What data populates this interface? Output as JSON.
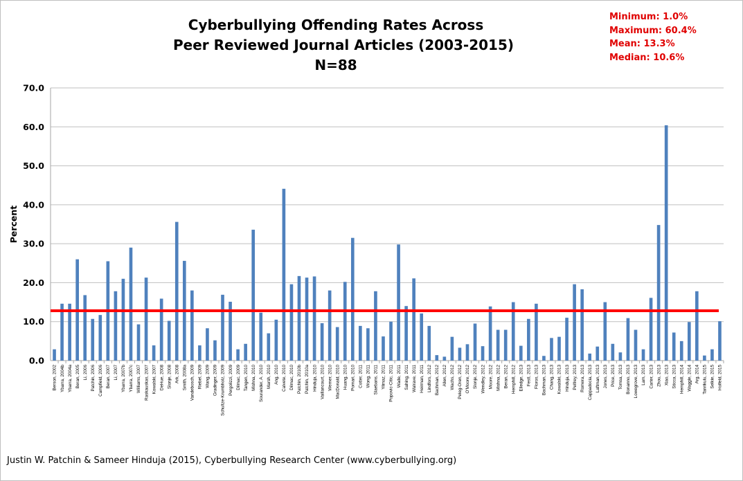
{
  "title_lines": [
    "Cyberbullying Offending Rates Across",
    "Peer Reviewed Journal Articles (2003-2015)",
    "N=88"
  ],
  "stats": [
    "Minimum: 1.0%",
    "Maximum: 60.4%",
    "Mean: 13.3%",
    "Median: 10.6%"
  ],
  "credit": "Justin W. Patchin & Sameer Hinduja (2015), Cyberbullying Research Center (www.cyberbullying.org)",
  "colors": {
    "bar": "#4f81bd",
    "mean_line": "#ff0000",
    "stats_text": "#e00000",
    "grid": "#bfbfbf"
  },
  "chart_data": {
    "type": "bar",
    "title": "Cyberbullying Offending Rates Across Peer Reviewed Journal Articles (2003-2015) N=88",
    "xlabel": "",
    "ylabel": "Percent",
    "ylim": [
      0,
      70
    ],
    "yticks": [
      "0.0",
      "10.0",
      "20.0",
      "30.0",
      "40.0",
      "50.0",
      "60.0",
      "70.0"
    ],
    "grid": true,
    "reference_line": {
      "value": 12.8
    },
    "categories": [
      "Berson, 2002",
      "Ybarra, 2004b",
      "Ybarra, 2004a",
      "Beran, 2005",
      "Li, 2006",
      "Patchin, 2006",
      "Campfield, 2006",
      "Beran, 2007",
      "Li, 2007",
      "Ybarra, 2007b",
      "Ybarra, 2007c",
      "Williams, 2007",
      "Raskauskas, 2007",
      "Kowalski, 2007",
      "DeHue, 2008",
      "Slonje, 2008",
      "Ark, 2008",
      "Smith, 2008a",
      "Vandebosch, 2009",
      "Riebel, 2009",
      "Wang, 2009",
      "Gradinger, 2009",
      "Schultze-Krumbholz, 2009",
      "Pergolizzi, 2009",
      "Dilmac, 2009",
      "Tangen, 2010",
      "Mishna, 2010",
      "Sourander, A. 2010",
      "Marsh, 2010",
      "Ang, 2010",
      "Calvete, 2010",
      "Dilmac, 2010",
      "Patchin, 2010b",
      "Patchin, 2010a",
      "Hinduja, 2010",
      "Vaillancourt, 2010",
      "Werner, 2010",
      "MacDonald, 2010",
      "Huang, 2010",
      "Pornari, 2010",
      "Cotter, 2011",
      "Wong, 2011",
      "Slaebans, 2011",
      "Yilmaz, 2011",
      "Popovic-Citic, 2011",
      "Wade, 2011",
      "Sahing, 2011",
      "Walrave, 2011",
      "Heirman, 2011",
      "Lindfors, 2012",
      "Bachman, 2012",
      "Allen, 2012",
      "Wachs, 2012",
      "Peleg-Oren, 2012",
      "O'Moore, 2012",
      "Slonje, 2012",
      "Wendley, 2012",
      "Moore, 2012",
      "Mishna, 2012",
      "Beran, 2012",
      "Hemphill, 2012",
      "Elledge, 2013",
      "Festl, 2013",
      "Floros, 2013",
      "Bachman, 2013",
      "Chang, 2013",
      "Kowalski, 2013",
      "Hinduja, 2013",
      "Pelfrey, 2013",
      "Romera, 2013",
      "Cappadocia, 2013",
      "Laftman, 2013",
      "Jones, 2013",
      "Price, 2013",
      "Tomsa, 2013",
      "Bonanno, 2013",
      "Lowegrove, 2013",
      "Lam, 2013",
      "Carter, 2013",
      "Zhou, 2013",
      "Xiao, 2013",
      "Sticca, 2013",
      "Hemphill, 2014",
      "Waggle, 2014",
      "Arg, 2014",
      "Tanrikulu, 2015",
      "Selkie, 2015",
      "Holfeld, 2015"
    ],
    "values": [
      2.9,
      14.6,
      14.6,
      26.0,
      16.8,
      10.7,
      11.7,
      25.5,
      17.8,
      21.0,
      29.0,
      9.3,
      21.3,
      3.9,
      15.9,
      10.2,
      35.6,
      25.6,
      18.0,
      3.9,
      8.3,
      5.2,
      16.9,
      15.1,
      2.9,
      4.3,
      33.6,
      12.3,
      7.0,
      10.5,
      44.1,
      19.6,
      21.7,
      21.3,
      21.6,
      9.6,
      18.0,
      8.6,
      20.2,
      31.5,
      8.9,
      8.3,
      17.8,
      6.2,
      10.0,
      29.8,
      14.0,
      21.1,
      12.1,
      8.9,
      1.4,
      1.0,
      6.1,
      3.3,
      4.2,
      9.5,
      3.7,
      13.9,
      7.9,
      7.9,
      15.0,
      3.8,
      10.7,
      14.6,
      1.2,
      5.8,
      6.1,
      11.0,
      19.6,
      18.3,
      1.8,
      3.6,
      15.0,
      4.3,
      2.1,
      10.9,
      7.9,
      2.9,
      16.1,
      34.8,
      60.4,
      7.2,
      5.0,
      9.9,
      17.8,
      1.3,
      2.9,
      10.1
    ]
  }
}
